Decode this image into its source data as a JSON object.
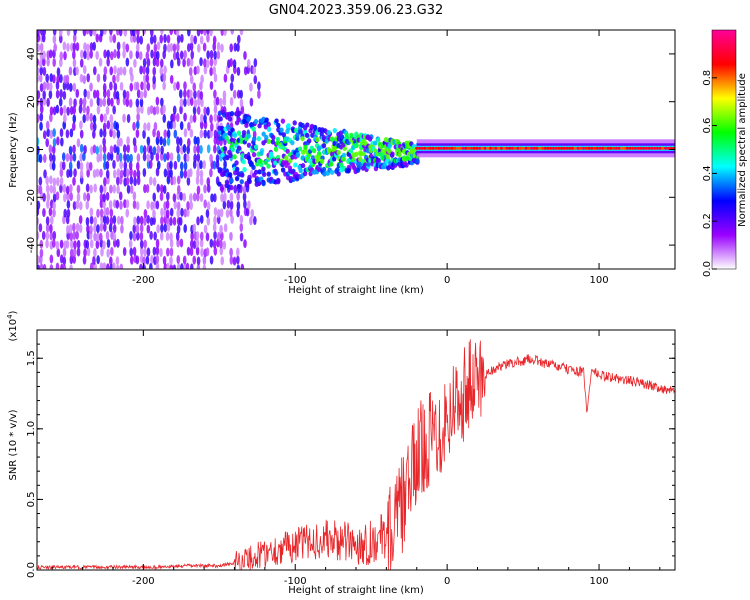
{
  "title": "GN04.2023.359.06.23.G32",
  "chart_data": [
    {
      "type": "heatmap",
      "xlabel": "Height of straight line (km)",
      "ylabel": "Frequency (Hz)",
      "xlim": [
        -270,
        150
      ],
      "ylim": [
        -50,
        50
      ],
      "xticks": [
        "-200",
        "-100",
        "0",
        "100"
      ],
      "yticks": [
        "40",
        "20",
        "0",
        "-20",
        "-40"
      ],
      "colorbar": {
        "label": "Normalized spectral amplitude",
        "range": [
          0,
          1
        ],
        "ticks": [
          "0.0",
          "0.2",
          "0.4",
          "0.6",
          "0.8"
        ],
        "colors": [
          "#ffffff",
          "#9900ff",
          "#0000ff",
          "#00ffff",
          "#00ff00",
          "#ffff00",
          "#ff0000",
          "#ff0099"
        ]
      },
      "features": [
        {
          "name": "noise-band",
          "x_range": [
            -270,
            -150
          ],
          "freq_range": [
            -50,
            50
          ],
          "amplitude": 0.2
        },
        {
          "name": "converging-signal",
          "x_range": [
            -150,
            -20
          ],
          "freq_spread_start": 12,
          "freq_spread_end": 3,
          "amplitude": 0.5
        },
        {
          "name": "carrier-line",
          "x_range": [
            -20,
            150
          ],
          "freq_center": 0.5,
          "amplitude": 0.9
        }
      ]
    },
    {
      "type": "line",
      "xlabel": "Height of straight line (km)",
      "ylabel": "SNR (10 * v/v)",
      "multiplier": "(x10",
      "multiplier_exp": "4",
      "multiplier_close": ")",
      "xlim": [
        -270,
        150
      ],
      "ylim": [
        0,
        1.7
      ],
      "xticks": [
        "-200",
        "-100",
        "0",
        "100"
      ],
      "yticks": [
        "0.0",
        "0.5",
        "1.0",
        "1.5"
      ],
      "color": "#e8262a",
      "series": [
        {
          "name": "SNR",
          "x": [
            -270,
            -250,
            -230,
            -210,
            -190,
            -170,
            -150,
            -140,
            -130,
            -120,
            -110,
            -100,
            -90,
            -80,
            -70,
            -60,
            -50,
            -40,
            -35,
            -30,
            -25,
            -20,
            -15,
            -10,
            -5,
            0,
            10,
            20,
            30,
            40,
            50,
            55,
            60,
            65,
            70,
            80,
            90,
            92,
            95,
            100,
            110,
            120,
            130,
            140,
            150
          ],
          "values": [
            0.02,
            0.02,
            0.02,
            0.02,
            0.02,
            0.03,
            0.03,
            0.05,
            0.08,
            0.12,
            0.15,
            0.18,
            0.2,
            0.22,
            0.2,
            0.18,
            0.2,
            0.25,
            0.3,
            0.45,
            0.6,
            0.8,
            0.9,
            0.95,
            1.0,
            1.1,
            1.25,
            1.35,
            1.42,
            1.46,
            1.48,
            1.5,
            1.48,
            1.46,
            1.45,
            1.42,
            1.4,
            1.1,
            1.42,
            1.38,
            1.36,
            1.34,
            1.32,
            1.29,
            1.26
          ]
        }
      ]
    }
  ]
}
